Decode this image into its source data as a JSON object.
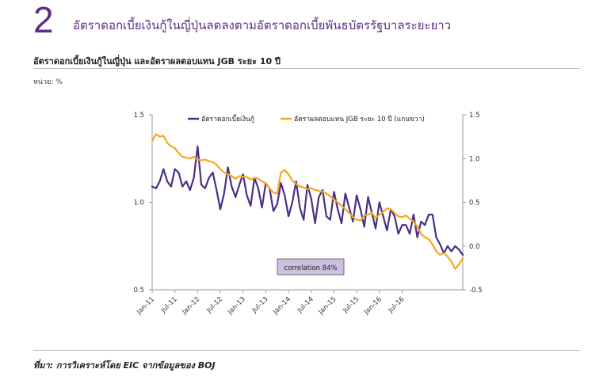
{
  "header": {
    "figure_number": "2",
    "title": "อัตราดอกเบี้ยเงินกู้ในญี่ปุ่นลดลงตามอัตราดอกเบี้ยพันธบัตรรัฐบาลระยะยาว",
    "subtitle": "อัตราดอกเบี้ยเงินกู้ในญี่ปุ่น และอัตราผลตอบแทน JGB ระยะ 10 ปี",
    "unit": "หน่วย: %"
  },
  "footer": {
    "source": "ที่มา: การวิเคราะห์โดย EIC จากข้อมูลของ BOJ"
  },
  "colors": {
    "accent": "#5b2d86",
    "loan_series": "#4b2f86",
    "jgb_series": "#f5a623",
    "axis": "#999999",
    "annotation_bg": "#cdbfe0"
  },
  "chart_data": {
    "type": "line",
    "title": "",
    "x_ticks": [
      "Jan-11",
      "Jul-11",
      "Jan-12",
      "Jul-12",
      "Jan-13",
      "Jul-13",
      "Jan-14",
      "Jul-14",
      "Jan-15",
      "Jul-15",
      "Jan-16",
      "Jul-16"
    ],
    "y_left": {
      "label": "",
      "range": [
        0.5,
        1.5
      ],
      "ticks": [
        "0.5",
        "1.0",
        "1.5"
      ]
    },
    "y_right": {
      "label": "",
      "range": [
        -0.5,
        1.5
      ],
      "ticks": [
        "-0.5",
        "0.0",
        "0.5",
        "1.0",
        "1.5"
      ]
    },
    "series": [
      {
        "name": "อัตราดอกเบี้ยเงินกู้",
        "axis": "left",
        "values": [
          1.09,
          1.08,
          1.12,
          1.19,
          1.12,
          1.09,
          1.19,
          1.17,
          1.09,
          1.12,
          1.07,
          1.14,
          1.32,
          1.1,
          1.08,
          1.14,
          1.17,
          1.07,
          0.96,
          1.05,
          1.2,
          1.09,
          1.03,
          1.1,
          1.16,
          1.04,
          0.98,
          1.14,
          1.08,
          0.97,
          1.11,
          1.08,
          0.95,
          0.99,
          1.11,
          1.04,
          0.92,
          1.0,
          1.12,
          0.97,
          0.9,
          1.1,
          1.02,
          0.88,
          1.03,
          1.07,
          0.92,
          0.9,
          1.06,
          0.96,
          0.88,
          1.05,
          0.97,
          0.89,
          1.04,
          0.96,
          0.86,
          1.03,
          0.94,
          0.85,
          1.0,
          0.92,
          0.84,
          0.96,
          0.92,
          0.82,
          0.87,
          0.87,
          0.82,
          0.93,
          0.8,
          0.89,
          0.87,
          0.93,
          0.93,
          0.8,
          0.76,
          0.71,
          0.75,
          0.72,
          0.75,
          0.73,
          0.7
        ],
        "color": "#4b2f86"
      },
      {
        "name": "อัตราผลตอบแทน JGB ระยะ 10 ปี (แกนขวา)",
        "axis": "right",
        "values": [
          1.2,
          1.28,
          1.25,
          1.26,
          1.18,
          1.14,
          1.12,
          1.06,
          1.02,
          1.01,
          1.0,
          1.02,
          0.99,
          0.98,
          0.99,
          0.97,
          0.96,
          0.93,
          0.88,
          0.84,
          0.82,
          0.8,
          0.77,
          0.8,
          0.79,
          0.79,
          0.76,
          0.78,
          0.77,
          0.74,
          0.72,
          0.66,
          0.61,
          0.6,
          0.84,
          0.87,
          0.82,
          0.75,
          0.71,
          0.68,
          0.67,
          0.65,
          0.66,
          0.64,
          0.63,
          0.62,
          0.6,
          0.57,
          0.53,
          0.5,
          0.46,
          0.42,
          0.38,
          0.33,
          0.3,
          0.29,
          0.35,
          0.36,
          0.38,
          0.32,
          0.36,
          0.39,
          0.43,
          0.42,
          0.38,
          0.34,
          0.33,
          0.35,
          0.31,
          0.28,
          0.22,
          0.14,
          0.1,
          0.08,
          0.02,
          -0.06,
          -0.1,
          -0.08,
          -0.12,
          -0.18,
          -0.26,
          -0.21,
          -0.14
        ],
        "color": "#f5a623"
      }
    ],
    "legend": {
      "position": "top",
      "entries": [
        "อัตราดอกเบี้ยเงินกู้",
        "อัตราผลตอบแทน JGB ระยะ 10 ปี (แกนขวา)"
      ]
    },
    "annotation": "correlation 84%",
    "grid": false
  }
}
